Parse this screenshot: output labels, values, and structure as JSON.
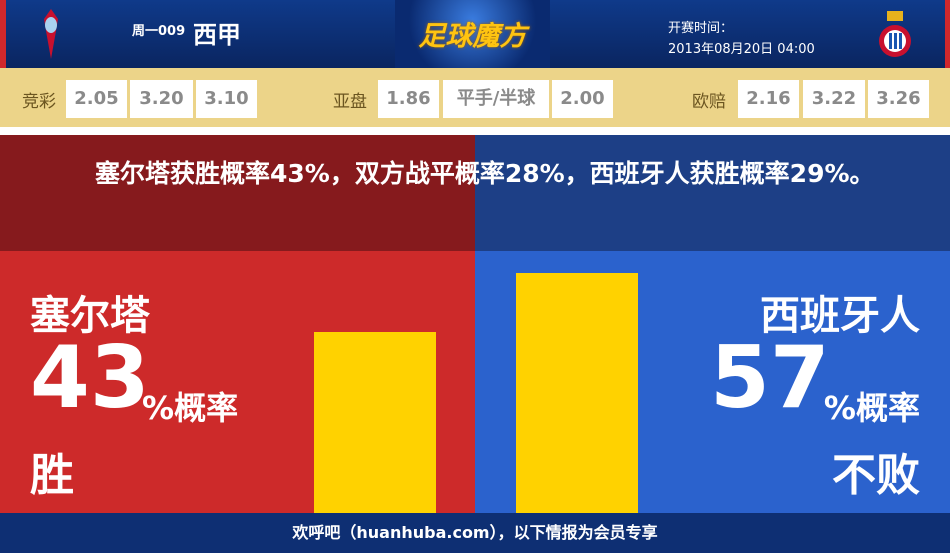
{
  "header": {
    "match_no": "周一009",
    "league": "西甲",
    "logo_text": "足球魔方",
    "start_label": "开赛时间：",
    "start_time": "2013年08月20日 04:00",
    "home_crest": "celta-crest-icon",
    "away_crest": "espanyol-crest-icon"
  },
  "odds": {
    "jingcai": {
      "label": "竞彩",
      "values": [
        "2.05",
        "3.20",
        "3.10"
      ]
    },
    "yapan": {
      "label": "亚盘",
      "values": [
        "1.86",
        "平手/半球",
        "2.00"
      ]
    },
    "oupei": {
      "label": "欧赔",
      "values": [
        "2.16",
        "3.22",
        "3.26"
      ]
    }
  },
  "summary": "塞尔塔获胜概率43%，双方战平概率28%，西班牙人获胜概率29%。",
  "home": {
    "name": "塞尔塔",
    "percent": "43",
    "unit": "%概率",
    "outcome": "胜",
    "bar_value": 43
  },
  "away": {
    "name": "西班牙人",
    "percent": "57",
    "unit": "%概率",
    "outcome": "不败",
    "bar_value": 57
  },
  "colors": {
    "home": "#cd2a2a",
    "away": "#2b62cd",
    "bar": "#ffd200"
  },
  "footer": "欢呼吧（huanhuba.com），以下情报为会员专享"
}
